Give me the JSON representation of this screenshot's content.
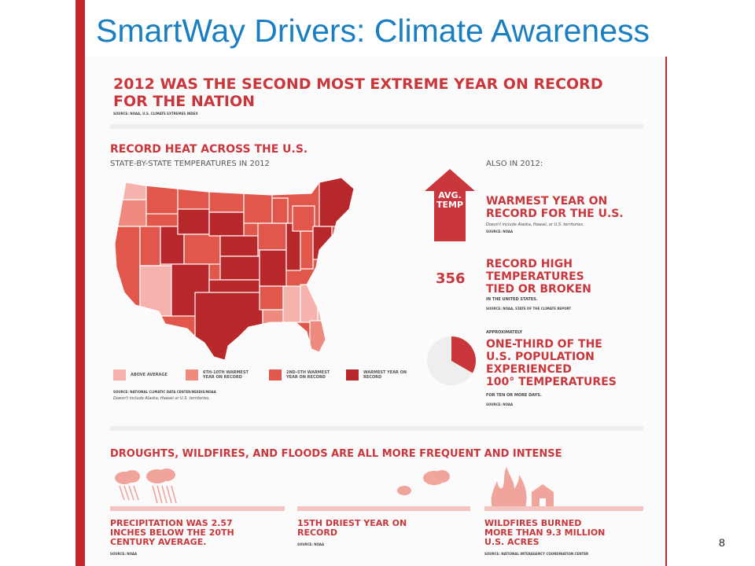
{
  "slide": {
    "title": "SmartWay Drivers: Climate Awareness",
    "page_number": "8"
  },
  "infographic": {
    "main_heading_line1": "2012 was the second most extreme year on record",
    "main_heading_line2": "for the nation",
    "main_source": "Source: NOAA, U.S. Climate Extremes Index",
    "heat_title": "Record heat across the U.S.",
    "heat_subtitle": "State-by-state temperatures in 2012",
    "map_legend": [
      {
        "label": "Above average",
        "color": "#f6b3ae"
      },
      {
        "label": "6th-10th warmest year on record",
        "color": "#ee8a7e"
      },
      {
        "label": "2nd-5th warmest year on record",
        "color": "#e2574b"
      },
      {
        "label": "Warmest year on record",
        "color": "#b8272a"
      }
    ],
    "map_source": "Source: National Climatic Data Center/NESDIS/NOAA",
    "map_note": "Doesn't include Alaska, Hawaii or U.S. territories.",
    "also_label": "Also in 2012:",
    "arrow_text_line1": "AVG.",
    "arrow_text_line2": "TEMP",
    "stat1_line1": "Warmest year on",
    "stat1_line2": "record for the U.S.",
    "stat1_note": "Doesn't include Alaska, Hawaii, or U.S. territories.",
    "stat1_source": "Source: NOAA",
    "stat2_number": "356",
    "stat2_line1": "Record high",
    "stat2_line2": "temperatures",
    "stat2_line3": "tied or broken",
    "stat2_note": "In the United States.",
    "stat2_source": "Source: NOAA, State of the Climate Report",
    "stat3_pre": "Approximately",
    "stat3_line1": "One-third of the",
    "stat3_line2": "U.S. population",
    "stat3_line3": "experienced",
    "stat3_line4": "100° temperatures",
    "stat3_note": "For ten or more days.",
    "stat3_source": "Source: NOAA",
    "pie_fraction": 0.333,
    "bottom_heading": "Droughts, wildfires, and floods are all more frequent and intense",
    "bottom_items": [
      {
        "line1": "Precipitation was 2.57",
        "line2": "inches below the 20th",
        "line3": "century average.",
        "source": "Source: NOAA"
      },
      {
        "line1": "15th driest year on",
        "line2": "record",
        "line3": "",
        "source": "Source: NOAA"
      },
      {
        "line1": "Wildfires burned",
        "line2": "more than 9.3 million",
        "line3": "U.S. acres",
        "source": "Source: National Interagency Coordination Center"
      }
    ],
    "colors": {
      "accent_red": "#c9373c",
      "title_blue": "#1a7fc1"
    }
  }
}
